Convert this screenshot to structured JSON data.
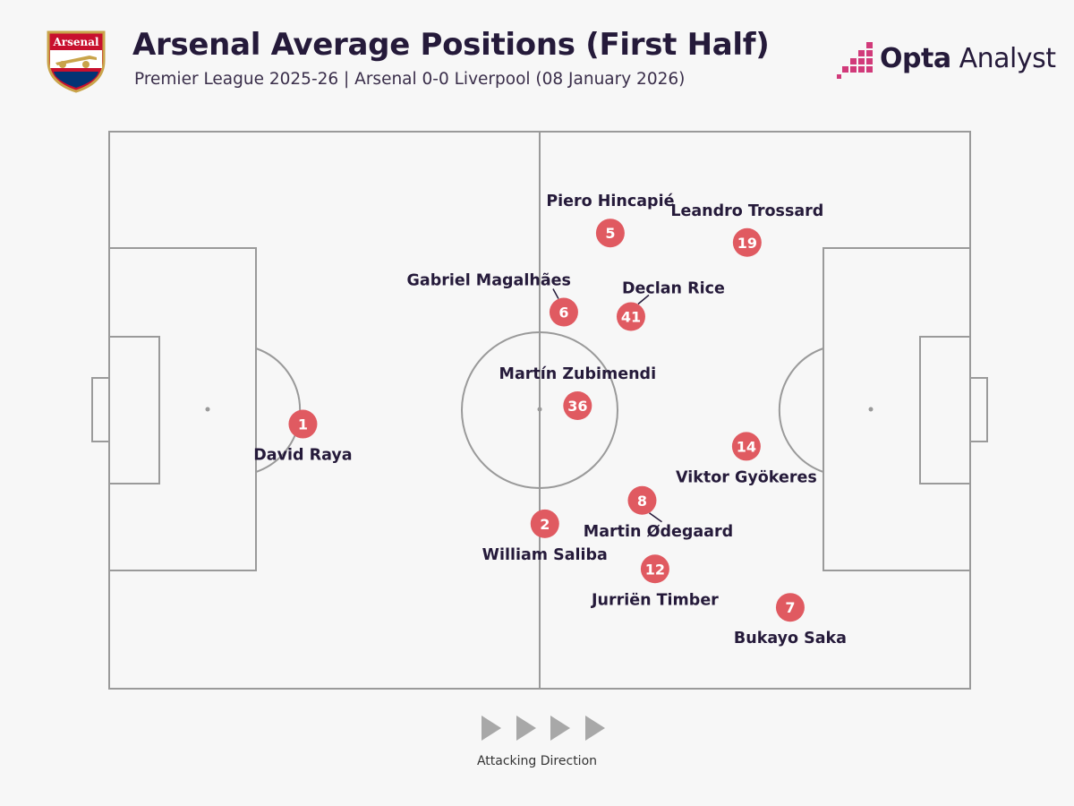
{
  "header": {
    "title": "Arsenal Average Positions (First Half)",
    "subtitle": "Premier League 2025-26 | Arsenal 0-0 Liverpool (08 January 2026)"
  },
  "crest": {
    "text": "Arsenal",
    "icon": "arsenal-crest-icon"
  },
  "brand": {
    "name_bold": "Opta",
    "name_light": " Analyst"
  },
  "footer": {
    "direction_label": "Attacking Direction"
  },
  "colors": {
    "marker": "#e05a61",
    "ink": "#251a3a",
    "pitch_line": "#9a9a9a",
    "background": "#f7f7f7"
  },
  "chart_data": {
    "type": "scatter",
    "title": "Arsenal Average Positions (First Half)",
    "xlim": [
      0,
      100
    ],
    "ylim": [
      0,
      100
    ],
    "players": [
      {
        "number": "1",
        "name": "David Raya",
        "x": 22.5,
        "y": 47.5,
        "label": "below"
      },
      {
        "number": "5",
        "name": "Piero Hincapié",
        "x": 58.2,
        "y": 81.8,
        "label": "above"
      },
      {
        "number": "19",
        "name": "Leandro Trossard",
        "x": 74.1,
        "y": 80.1,
        "label": "above"
      },
      {
        "number": "6",
        "name": "Gabriel Magalhães",
        "x": 52.8,
        "y": 67.6,
        "label": "above-left"
      },
      {
        "number": "41",
        "name": "Declan Rice",
        "x": 60.6,
        "y": 66.8,
        "label": "above-right"
      },
      {
        "number": "36",
        "name": "Martín Zubimendi",
        "x": 54.4,
        "y": 50.8,
        "label": "above"
      },
      {
        "number": "14",
        "name": "Viktor Gyökeres",
        "x": 74.0,
        "y": 43.5,
        "label": "below"
      },
      {
        "number": "8",
        "name": "Martin Ødegaard",
        "x": 61.9,
        "y": 33.8,
        "label": "below-right"
      },
      {
        "number": "2",
        "name": "William Saliba",
        "x": 50.6,
        "y": 29.6,
        "label": "below"
      },
      {
        "number": "12",
        "name": "Jurriën Timber",
        "x": 63.4,
        "y": 21.5,
        "label": "below"
      },
      {
        "number": "7",
        "name": "Bukayo Saka",
        "x": 79.1,
        "y": 14.6,
        "label": "below"
      }
    ]
  }
}
